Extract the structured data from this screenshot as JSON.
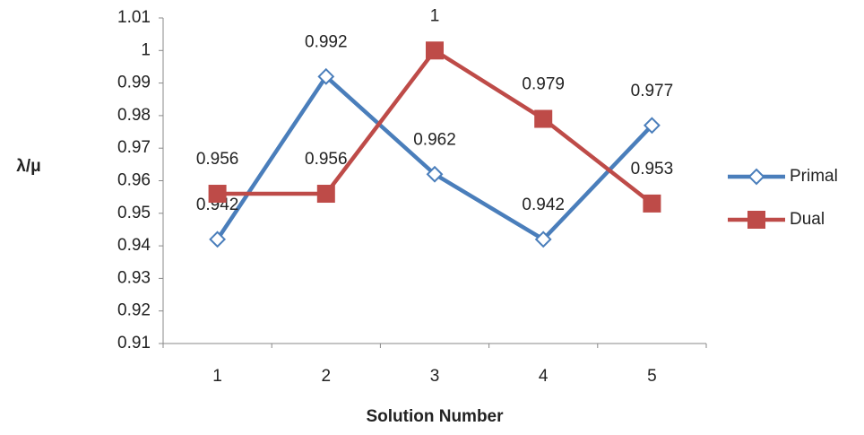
{
  "chart_data": {
    "type": "line",
    "x_label": "Solution Number",
    "y_label": "λ/μ",
    "categories": [
      "1",
      "2",
      "3",
      "4",
      "5"
    ],
    "series": [
      {
        "name": "Primal",
        "color": "#4a7ebb",
        "values": [
          0.942,
          0.992,
          0.962,
          0.942,
          0.977
        ]
      },
      {
        "name": "Dual",
        "color": "#be4b48",
        "values": [
          0.956,
          0.956,
          1,
          0.979,
          0.953
        ]
      }
    ],
    "ylim": [
      0.91,
      1.01
    ],
    "yticks": [
      0.91,
      0.92,
      0.93,
      0.94,
      0.95,
      0.96,
      0.97,
      0.98,
      0.99,
      1,
      1.01
    ],
    "grid": false,
    "legend": "right"
  }
}
